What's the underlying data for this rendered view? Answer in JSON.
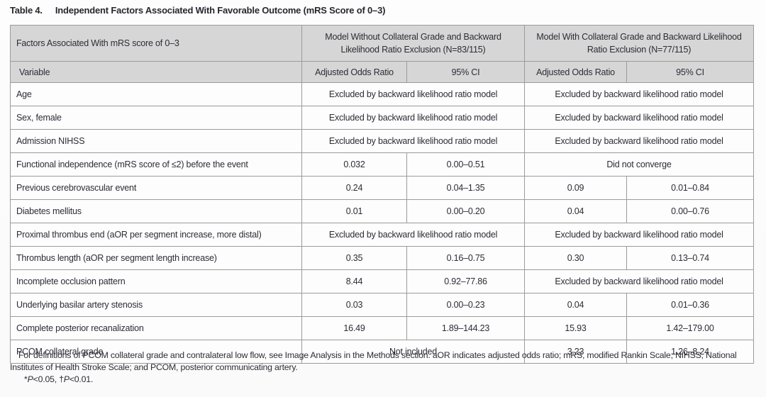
{
  "title": {
    "label": "Table 4.",
    "text": "Independent Factors Associated With Favorable Outcome (mRS Score of 0–3)"
  },
  "table": {
    "header": {
      "factor_column": "Factors Associated With mRS score of 0–3",
      "group1": "Model Without Collateral Grade and Backward Likelihood Ratio Exclusion (N=83/115)",
      "group2": "Model With Collateral Grade and Backward Likelihood Ratio Exclusion (N=77/115)",
      "variable": "Variable",
      "aor1": "Adjusted Odds Ratio",
      "ci1": "95% CI",
      "aor2": "Adjusted Odds Ratio",
      "ci2": "95% CI"
    },
    "excluded_text": "Excluded by backward likelihood ratio model",
    "rows": [
      {
        "variable": "Age",
        "cells": [
          {
            "text": "Excluded by backward likelihood ratio model",
            "span": 2
          },
          {
            "text": "Excluded by backward likelihood ratio model",
            "span": 2
          }
        ]
      },
      {
        "variable": "Sex, female",
        "cells": [
          {
            "text": "Excluded by backward likelihood ratio model",
            "span": 2
          },
          {
            "text": "Excluded by backward likelihood ratio model",
            "span": 2
          }
        ]
      },
      {
        "variable": "Admission NIHSS",
        "cells": [
          {
            "text": "Excluded by backward likelihood ratio model",
            "span": 2
          },
          {
            "text": "Excluded by backward likelihood ratio model",
            "span": 2
          }
        ]
      },
      {
        "variable": "Functional independence (mRS score of ≤2) before the event",
        "cells": [
          {
            "text": "0.032",
            "span": 1
          },
          {
            "text": "0.00–0.51",
            "span": 1
          },
          {
            "text": "Did not converge",
            "span": 2
          }
        ]
      },
      {
        "variable": "Previous cerebrovascular event",
        "cells": [
          {
            "text": "0.24",
            "span": 1
          },
          {
            "text": "0.04–1.35",
            "span": 1
          },
          {
            "text": "0.09",
            "span": 1
          },
          {
            "text": "0.01–0.84",
            "span": 1
          }
        ]
      },
      {
        "variable": "Diabetes mellitus",
        "cells": [
          {
            "text": "0.01",
            "span": 1
          },
          {
            "text": "0.00–0.20",
            "span": 1
          },
          {
            "text": "0.04",
            "span": 1
          },
          {
            "text": "0.00–0.76",
            "span": 1
          }
        ]
      },
      {
        "variable": "Proximal thrombus end (aOR per segment increase, more distal)",
        "cells": [
          {
            "text": "Excluded by backward likelihood ratio model",
            "span": 2
          },
          {
            "text": "Excluded by backward likelihood ratio model",
            "span": 2
          }
        ]
      },
      {
        "variable": "Thrombus length (aOR per segment length increase)",
        "cells": [
          {
            "text": "0.35",
            "span": 1
          },
          {
            "text": "0.16–0.75",
            "span": 1
          },
          {
            "text": "0.30",
            "span": 1
          },
          {
            "text": "0.13–0.74",
            "span": 1
          }
        ]
      },
      {
        "variable": "Incomplete occlusion pattern",
        "cells": [
          {
            "text": "8.44",
            "span": 1
          },
          {
            "text": "0.92–77.86",
            "span": 1
          },
          {
            "text": "Excluded by backward likelihood ratio model",
            "span": 2
          }
        ]
      },
      {
        "variable": "Underlying basilar artery stenosis",
        "cells": [
          {
            "text": "0.03",
            "span": 1
          },
          {
            "text": "0.00–0.23",
            "span": 1
          },
          {
            "text": "0.04",
            "span": 1
          },
          {
            "text": "0.01–0.36",
            "span": 1
          }
        ]
      },
      {
        "variable": "Complete posterior recanalization",
        "cells": [
          {
            "text": "16.49",
            "span": 1
          },
          {
            "text": "1.89–144.23",
            "span": 1
          },
          {
            "text": "15.93",
            "span": 1
          },
          {
            "text": "1.42–179.00",
            "span": 1
          }
        ]
      },
      {
        "variable": "PCOM collateral grade",
        "cells": [
          {
            "text": "Not included",
            "span": 2
          },
          {
            "text": "3.23",
            "span": 1
          },
          {
            "text": "1.26–8.24",
            "span": 1
          }
        ]
      }
    ]
  },
  "footnotes": {
    "definitions": "For definitions of PCOM collateral grade and contralateral low flow, see Image Analysis in the Methods section. aOR indicates adjusted odds ratio; mRS, modified Rankin Scale; NIHSS, National Institutes of Health Stroke Scale; and PCOM, posterior communicating artery.",
    "pvalues": {
      "star": "*",
      "p1": "P",
      "seg1": "<0.05, †",
      "p2": "P",
      "seg2": "<0.01."
    }
  },
  "colors": {
    "header_bg": "#d6d6d6",
    "grid_line": "#9b9b9b",
    "text": "#2c2c36"
  }
}
